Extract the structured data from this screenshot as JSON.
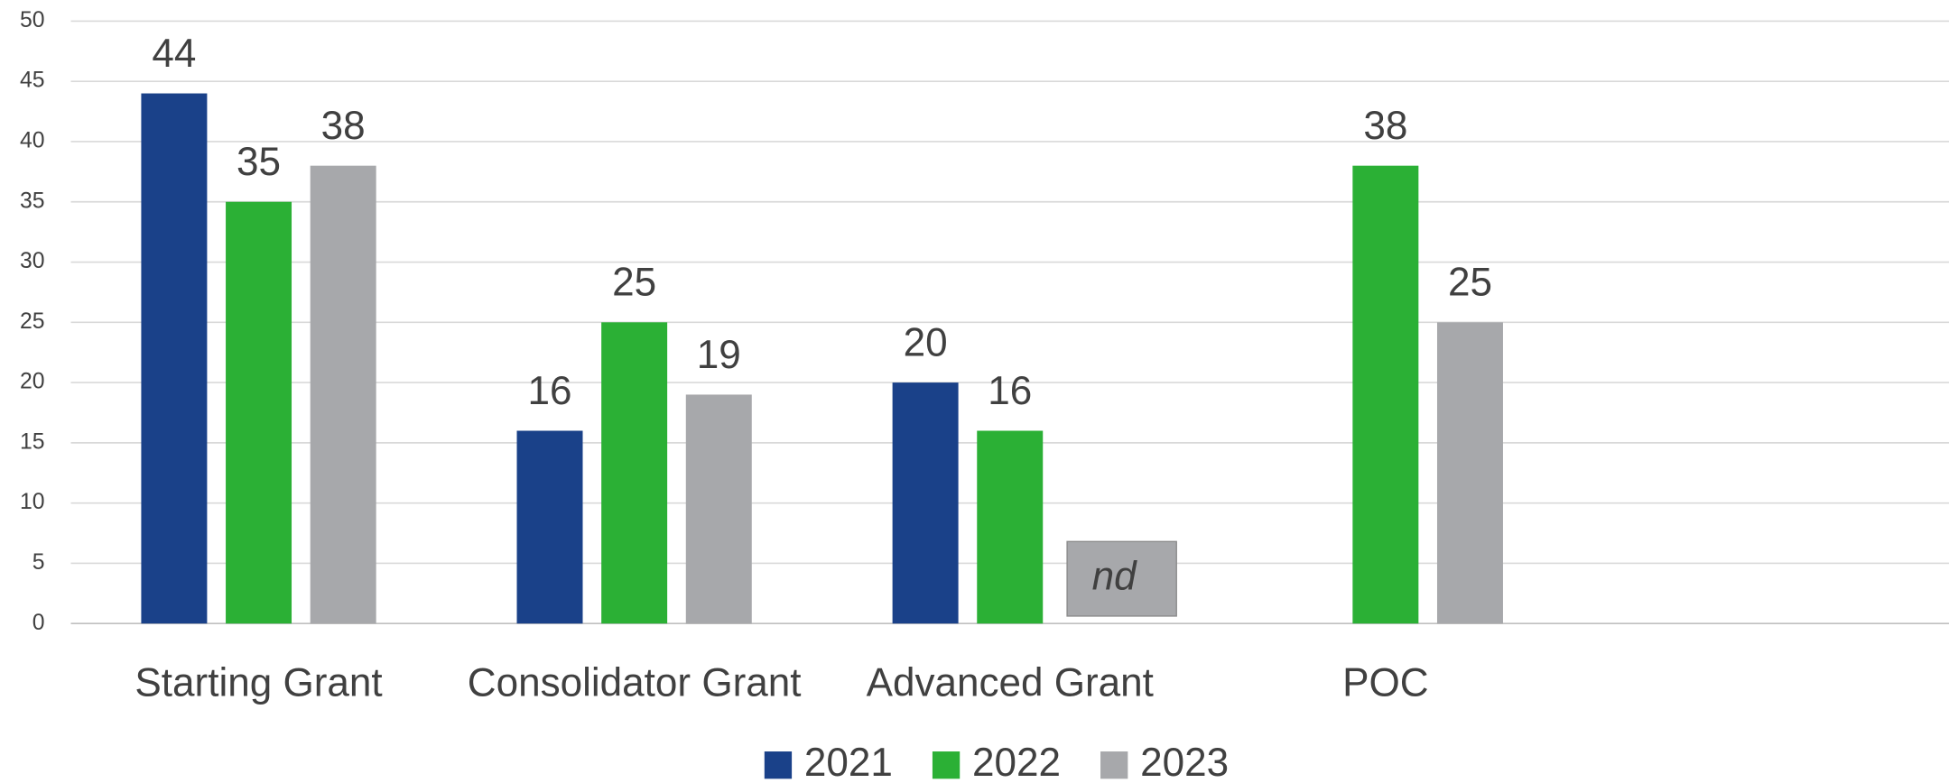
{
  "chart_data": {
    "type": "bar",
    "categories": [
      "Starting Grant",
      "Consolidator Grant",
      "Advanced Grant",
      "POC",
      null
    ],
    "series": [
      {
        "name": "2021",
        "color": "#1a4189",
        "values": [
          44,
          16,
          20,
          null,
          null
        ]
      },
      {
        "name": "2022",
        "color": "#2bb035",
        "values": [
          35,
          25,
          16,
          38,
          null
        ]
      },
      {
        "name": "2023",
        "color": "#a7a8ab",
        "values": [
          38,
          19,
          null,
          25,
          null
        ],
        "value_labels": [
          "38",
          "19",
          "nd",
          "25",
          null
        ]
      }
    ],
    "ylim": [
      0,
      50
    ],
    "yticks": [
      0,
      5,
      10,
      15,
      20,
      25,
      30,
      35,
      40,
      45,
      50
    ],
    "grid": true,
    "legend": "bottom"
  }
}
